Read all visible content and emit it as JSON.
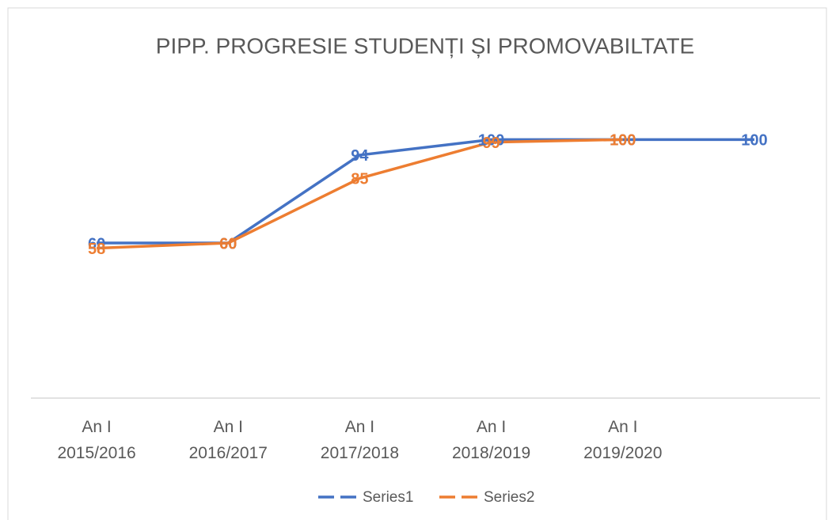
{
  "chart_data": {
    "type": "line",
    "title": "PIPP. PROGRESIE STUDENȚI ȘI PROMOVABILTATE",
    "categories": [
      "An I 2015/2016",
      "An I 2016/2017",
      "An I 2017/2018",
      "An I 2018/2019",
      "An I 2019/2020",
      null
    ],
    "series": [
      {
        "name": "Series1",
        "color": "#4472c4",
        "values": [
          60,
          60,
          94,
          100,
          100,
          100
        ]
      },
      {
        "name": "Series2",
        "color": "#ed7d31",
        "values": [
          58,
          60,
          85,
          99,
          100,
          null
        ]
      }
    ],
    "ylim": [
      0,
      120
    ],
    "legend": "bottom"
  }
}
